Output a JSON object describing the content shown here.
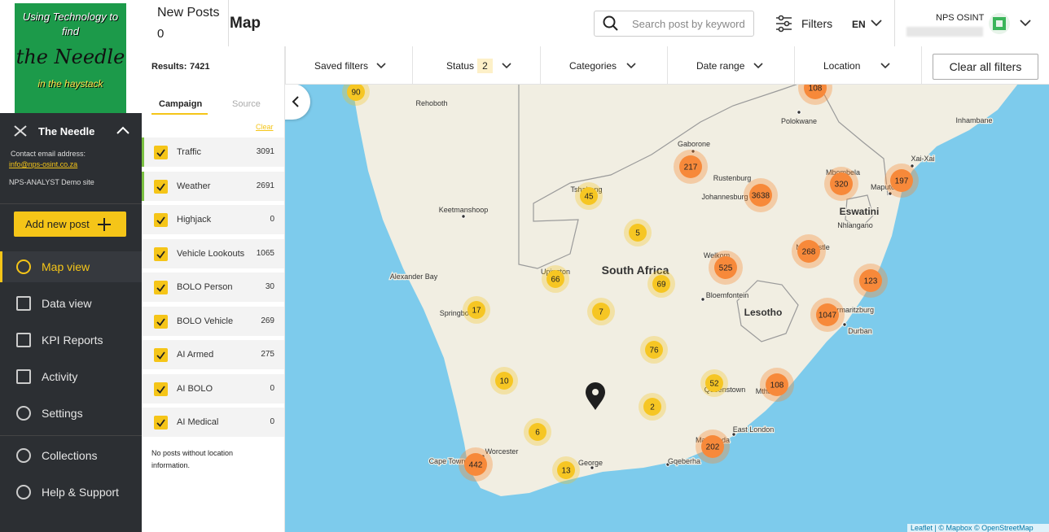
{
  "logo": {
    "line1": "Using Technology to",
    "line2": "find",
    "line3": "the Needle",
    "line4": "in the haystack"
  },
  "sidebar": {
    "site_name": "The Needle",
    "contact_label": "Contact email address:",
    "contact_email": "info@nps-osint.co.za",
    "site_desc": "NPS-ANALYST Demo site",
    "add_button": "Add new post",
    "nav": [
      "Map view",
      "Data view",
      "KPI Reports",
      "Activity",
      "Settings",
      "Collections",
      "Help & Support"
    ]
  },
  "header": {
    "new_posts_label": "New Posts",
    "new_posts_count": 0,
    "page_title": "Map",
    "search_placeholder": "Search post by keyword",
    "filters": "Filters",
    "language": "EN",
    "user": "NPS OSINT"
  },
  "filter_bar": {
    "results_label": "Results:",
    "results_count": 7421,
    "filters": [
      "Saved filters",
      "Status",
      "Categories",
      "Date range",
      "Location"
    ],
    "status_count": 2,
    "clear_all": "Clear all filters"
  },
  "panel": {
    "tabs": [
      "Campaign",
      "Source"
    ],
    "clear": "Clear",
    "items": [
      {
        "label": "Traffic",
        "count": 3091
      },
      {
        "label": "Weather",
        "count": 2691
      },
      {
        "label": "Highjack",
        "count": 0
      },
      {
        "label": "Vehicle Lookouts",
        "count": 1065
      },
      {
        "label": "BOLO Person",
        "count": 30
      },
      {
        "label": "BOLO Vehicle",
        "count": 269
      },
      {
        "label": "AI Armed",
        "count": 275
      },
      {
        "label": "AI BOLO",
        "count": 0
      },
      {
        "label": "AI Medical",
        "count": 0
      }
    ],
    "note": "No posts without location information."
  },
  "map": {
    "places": [
      "Rehoboth",
      "Gaborone",
      "Polokwane",
      "Inhambane",
      "Xai-Xai",
      "Rustenburg",
      "Mbombela",
      "Johannesburg",
      "Tshabong",
      "Maputo",
      "Keetmanshoop",
      "Eswatini",
      "Nhlangano",
      "Newcastle",
      "Upington",
      "South Africa",
      "Welkom",
      "Alexander Bay",
      "Bloemfontein",
      "Lesotho",
      "Springbok",
      "Pietermaritzburg",
      "Durban",
      "Queenstown",
      "Mthatha",
      "East London",
      "Makhanda",
      "Worcester",
      "Cape Town",
      "George",
      "Gqeberha"
    ],
    "clusters": [
      90,
      108,
      217,
      3638,
      320,
      197,
      45,
      5,
      268,
      525,
      66,
      69,
      123,
      17,
      7,
      1047,
      76,
      10,
      52,
      108,
      2,
      6,
      202,
      442,
      13
    ],
    "attribution": "Leaflet | © Mapbox © OpenStreetMap"
  }
}
